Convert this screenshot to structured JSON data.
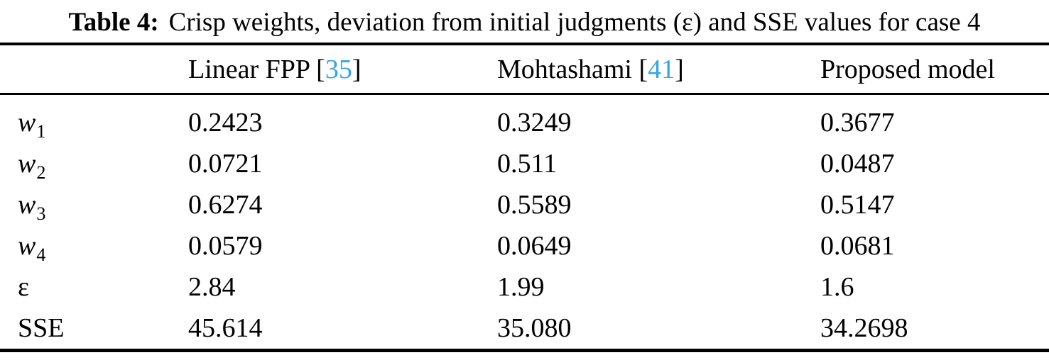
{
  "caption": {
    "label": "Table 4:",
    "text": "Crisp weights, deviation from initial judgments (ε) and SSE values for case 4"
  },
  "colors": {
    "text": "#000000",
    "background": "#FFFFFF",
    "citation": "#36A5DC"
  },
  "header": {
    "columns": [
      {
        "pre": "Linear FPP [",
        "cite": "35",
        "post": "]"
      },
      {
        "pre": "Mohtashami [",
        "cite": "41",
        "post": "]"
      },
      {
        "pre": "Proposed model",
        "cite": "",
        "post": ""
      }
    ]
  },
  "rows": [
    {
      "base": "w",
      "sub": "1",
      "values": [
        "0.2423",
        "0.3249",
        "0.3677"
      ]
    },
    {
      "base": "w",
      "sub": "2",
      "values": [
        "0.0721",
        "0.511",
        "0.0487"
      ]
    },
    {
      "base": "w",
      "sub": "3",
      "values": [
        "0.6274",
        "0.5589",
        "0.5147"
      ]
    },
    {
      "base": "w",
      "sub": "4",
      "values": [
        "0.0579",
        "0.0649",
        "0.0681"
      ]
    },
    {
      "base": "ε",
      "sub": "",
      "values": [
        "2.84",
        "1.99",
        "1.6"
      ]
    },
    {
      "base": "SSE",
      "sub": "",
      "values": [
        "45.614",
        "35.080",
        "34.2698"
      ]
    }
  ],
  "chart_data": {
    "type": "table",
    "title": "Table 4: Crisp weights, deviation from initial judgments (ε) and SSE values for case 4",
    "columns": [
      "",
      "Linear FPP [35]",
      "Mohtashami [41]",
      "Proposed model"
    ],
    "rows": [
      [
        "w1",
        0.2423,
        0.3249,
        0.3677
      ],
      [
        "w2",
        0.0721,
        0.511,
        0.0487
      ],
      [
        "w3",
        0.6274,
        0.5589,
        0.5147
      ],
      [
        "w4",
        0.0579,
        0.0649,
        0.0681
      ],
      [
        "ε",
        2.84,
        1.99,
        1.6
      ],
      [
        "SSE",
        45.614,
        35.08,
        34.2698
      ]
    ]
  }
}
